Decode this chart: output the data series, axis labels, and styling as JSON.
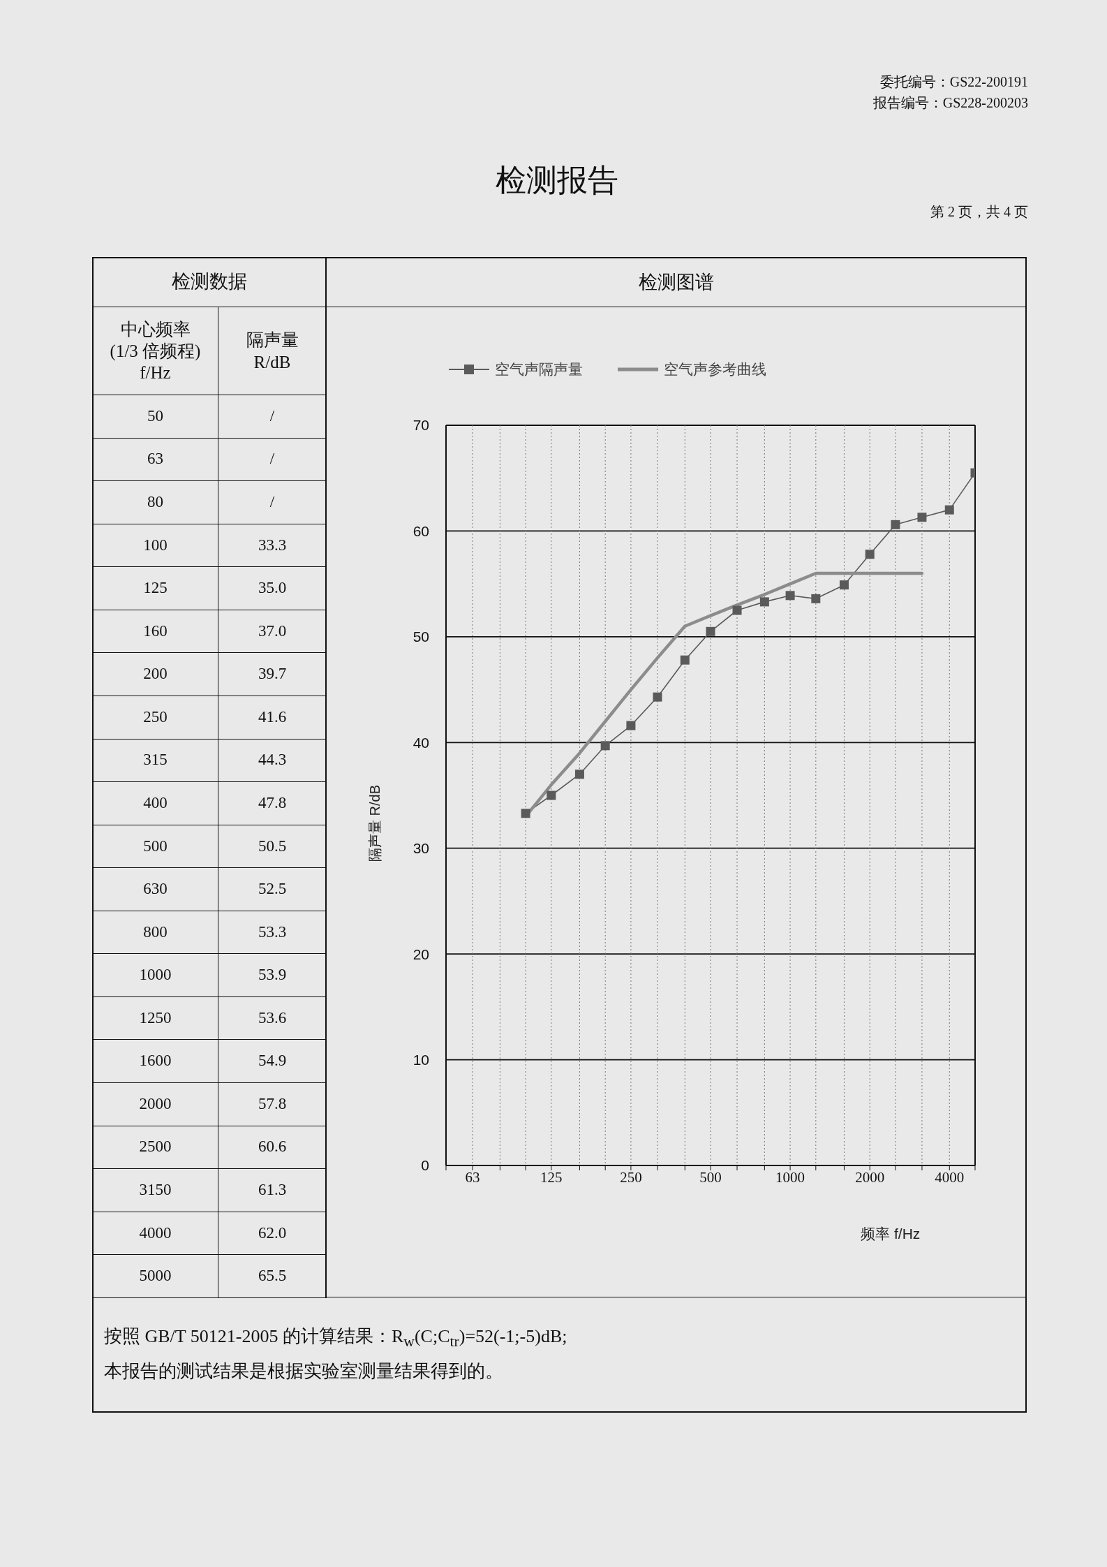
{
  "chart_data": [
    {
      "type": "other",
      "title": "检测数据",
      "annotations": [
        "中心频率\n(1/3 倍频程)\nf/Hz",
        "隔声量\nR/dB",
        "50",
        "/",
        "63",
        "/",
        "80",
        "/",
        "100",
        "33.3",
        "125",
        "35.0",
        "160",
        "37.0",
        "200",
        "39.7",
        "250",
        "41.6",
        "315",
        "44.3",
        "400",
        "47.8",
        "500",
        "50.5",
        "630",
        "52.5",
        "800",
        "53.3",
        "1000",
        "53.9",
        "1250",
        "53.6",
        "1600",
        "54.9",
        "2000",
        "57.8",
        "2500",
        "60.6",
        "3150",
        "61.3",
        "4000",
        "62.0",
        "5000",
        "65.5"
      ]
    },
    {
      "type": "line",
      "title": "检测图谱",
      "xlabel": "频率 f/Hz",
      "ylabel": "隔声量 R/dB",
      "log": "x",
      "xlim": [
        50,
        5000
      ],
      "xticks": [
        {
          "value": 50,
          "label": null
        },
        63,
        {
          "value": 80,
          "label": null
        },
        {
          "value": 100,
          "label": null
        },
        125,
        {
          "value": 160,
          "label": null
        },
        {
          "value": 200,
          "label": null
        },
        250,
        {
          "value": 315,
          "label": null
        },
        {
          "value": 400,
          "label": null
        },
        500,
        {
          "value": 630,
          "label": null
        },
        {
          "value": 800,
          "label": null
        },
        1000,
        {
          "value": 1250,
          "label": null
        },
        {
          "value": 1600,
          "label": null
        },
        2000,
        {
          "value": 2500,
          "label": null
        },
        {
          "value": 3150,
          "label": null
        },
        4000,
        {
          "value": 5000,
          "label": null
        }
      ],
      "ylim": [
        0,
        70
      ],
      "yticks": [
        0,
        10,
        20,
        30,
        40,
        50,
        60,
        70
      ],
      "grid": true,
      "legend": "top",
      "series": [
        {
          "name": "空气声隔声量",
          "color": "#5a5a5a",
          "marker": "square",
          "x": [
            100,
            125,
            160,
            200,
            250,
            315,
            400,
            500,
            630,
            800,
            1000,
            1250,
            1600,
            2000,
            2500,
            3150,
            4000,
            5000
          ],
          "values": [
            33.3,
            35.0,
            37.0,
            39.7,
            41.6,
            44.3,
            47.8,
            50.5,
            52.5,
            53.3,
            53.9,
            53.6,
            54.9,
            57.8,
            60.6,
            61.3,
            62.0,
            65.5
          ]
        },
        {
          "name": "空气声参考曲线",
          "color": "#8c8c8c",
          "marker": "none",
          "x": [
            100,
            125,
            160,
            200,
            250,
            315,
            400,
            500,
            630,
            800,
            1000,
            1250,
            1600,
            2000,
            2500,
            3150
          ],
          "values": [
            33,
            36,
            39,
            42,
            45,
            48,
            51,
            52,
            53,
            54,
            55,
            56,
            56,
            56,
            56,
            56
          ]
        }
      ],
      "annotations": [
        "检测报告",
        "委托编号：GS22-200191",
        "报告编号：GS228-200203",
        "第 2 页，共 4 页",
        "按照 GB/T 50121-2005 的计算结果：R$_{w}$(C;C$_{tr}$)=52(-1;-5)dB;",
        "本报告的测试结果是根据实验室测量结果得到的。"
      ]
    }
  ]
}
